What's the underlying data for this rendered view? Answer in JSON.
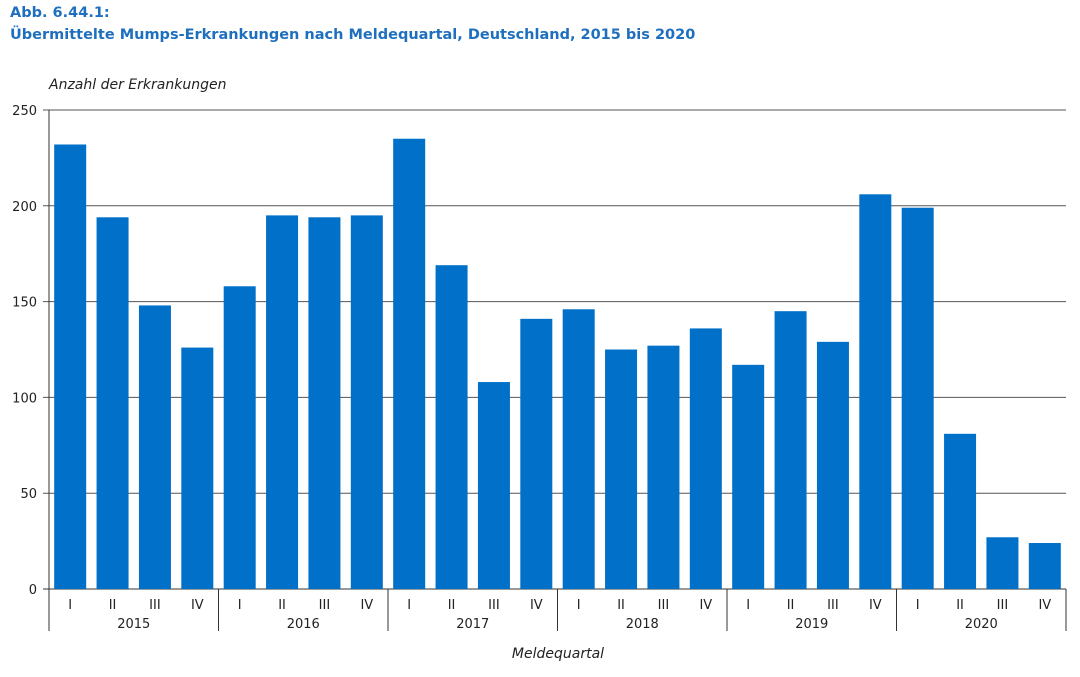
{
  "chart_data": {
    "type": "bar",
    "figure_label": "Abb. 6.44.1:",
    "title": "Übermittelte Mumps-Erkrankungen nach Meldequartal, Deutschland, 2015 bis 2020",
    "ylabel": "Anzahl der Erkrankungen",
    "xlabel": "Meldequartal",
    "ylim": [
      0,
      250
    ],
    "yticks": [
      0,
      50,
      100,
      150,
      200,
      250
    ],
    "grid": true,
    "bar_color": "#0070c8",
    "years": [
      "2015",
      "2016",
      "2017",
      "2018",
      "2019",
      "2020"
    ],
    "quarters": [
      "I",
      "II",
      "III",
      "IV"
    ],
    "values": [
      232,
      194,
      148,
      126,
      158,
      195,
      194,
      195,
      235,
      169,
      108,
      141,
      146,
      125,
      127,
      136,
      117,
      145,
      129,
      206,
      199,
      81,
      27,
      24
    ]
  }
}
